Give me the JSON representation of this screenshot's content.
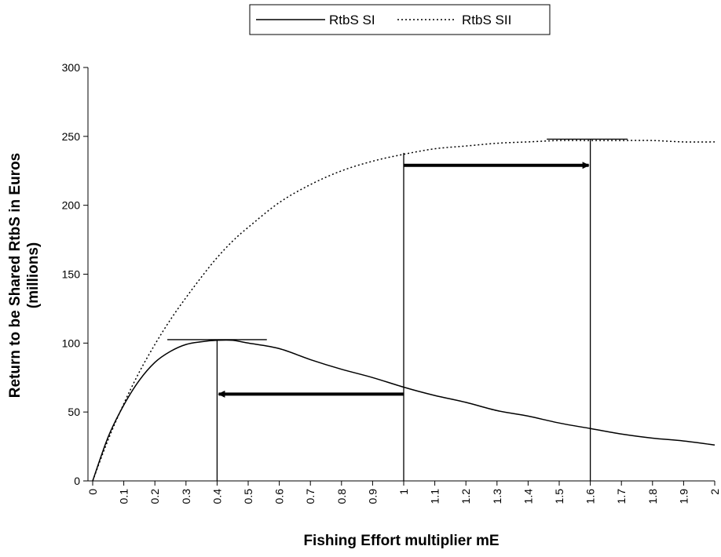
{
  "chart_data": {
    "type": "line",
    "xlabel": "Fishing Effort multiplier mE",
    "ylabel_lines": [
      "Return to be Shared RtbS in Euros",
      "(millions)"
    ],
    "ylim": [
      0,
      300
    ],
    "yticks": [
      0,
      50,
      100,
      150,
      200,
      250,
      300
    ],
    "xlim": [
      0,
      2
    ],
    "xticks": [
      "0",
      "0.1",
      "0.2",
      "0.3",
      "0.4",
      "0.5",
      "0.6",
      "0.7",
      "0.8",
      "0.9",
      "1",
      "1.1",
      "1.2",
      "1.3",
      "1.4",
      "1.5",
      "1.6",
      "1.7",
      "1.8",
      "1.9",
      "2"
    ],
    "grid": false,
    "legend_position": "top-center",
    "series": [
      {
        "name": "RtbS SI",
        "style": "solid",
        "x": [
          0,
          0.05,
          0.1,
          0.15,
          0.2,
          0.25,
          0.3,
          0.35,
          0.4,
          0.45,
          0.5,
          0.6,
          0.7,
          0.8,
          0.9,
          1.0,
          1.1,
          1.2,
          1.3,
          1.4,
          1.5,
          1.6,
          1.7,
          1.8,
          1.9,
          2.0
        ],
        "y": [
          0,
          32,
          55,
          73,
          86,
          94,
          99,
          101,
          102,
          102,
          100,
          96,
          88,
          81,
          75,
          68,
          62,
          57,
          51,
          47,
          42,
          38,
          34,
          31,
          29,
          26
        ]
      },
      {
        "name": "RtbS SII",
        "style": "dotted",
        "x": [
          0,
          0.05,
          0.1,
          0.15,
          0.2,
          0.25,
          0.3,
          0.35,
          0.4,
          0.45,
          0.5,
          0.6,
          0.7,
          0.8,
          0.9,
          1.0,
          1.1,
          1.2,
          1.3,
          1.4,
          1.5,
          1.6,
          1.7,
          1.8,
          1.9,
          2.0
        ],
        "y": [
          0,
          30,
          56,
          79,
          99,
          117,
          133,
          148,
          162,
          174,
          184,
          202,
          215,
          225,
          232,
          237,
          241,
          243,
          245,
          246,
          247,
          247,
          247,
          247,
          246,
          246
        ]
      }
    ],
    "annotations": {
      "vertical_lines_x": [
        0.4,
        1.0,
        1.6
      ],
      "max_markers": [
        {
          "x1": 0.24,
          "x2": 0.56,
          "y": 102.5
        },
        {
          "x1": 1.46,
          "x2": 1.72,
          "y": 248
        }
      ],
      "arrows": [
        {
          "from_x": 1.0,
          "to_x": 0.4,
          "y": 63
        },
        {
          "from_x": 1.0,
          "to_x": 1.6,
          "y": 229
        }
      ]
    }
  }
}
